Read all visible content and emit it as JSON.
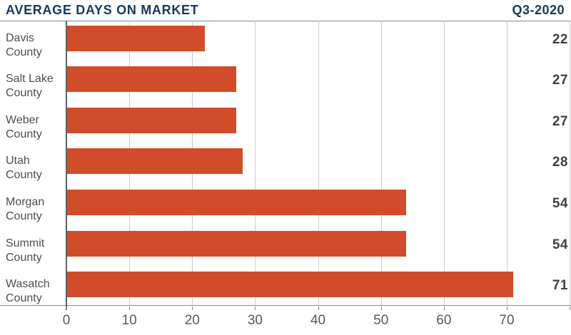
{
  "header": {
    "title": "AVERAGE DAYS ON MARKET",
    "period": "Q3-2020"
  },
  "chart_data": {
    "type": "bar",
    "orientation": "horizontal",
    "title": "AVERAGE DAYS ON MARKET",
    "subtitle": "Q3-2020",
    "categories": [
      "Davis County",
      "Salt Lake County",
      "Weber County",
      "Utah County",
      "Morgan County",
      "Summit County",
      "Wasatch County"
    ],
    "values": [
      22,
      27,
      27,
      28,
      54,
      54,
      71
    ],
    "data_labels": [
      "22",
      "27",
      "27",
      "28",
      "54",
      "54",
      "71"
    ],
    "xlabel": "",
    "ylabel": "",
    "xlim": [
      0,
      80
    ],
    "x_ticks": [
      0,
      10,
      20,
      30,
      40,
      50,
      60,
      70
    ],
    "grid": true,
    "legend": false,
    "bar_color": "#D14D29"
  },
  "colors": {
    "title_navy": "#143A5E",
    "bar_orange": "#D14D29",
    "category_label_gray": "#4D4D4F",
    "value_label_gray": "#414042",
    "tick_label_gray": "#58595B",
    "gridline_gray": "#CBCCCE",
    "axis_rule_gray": "#87898C",
    "zero_line_gray": "#5E5F61"
  }
}
